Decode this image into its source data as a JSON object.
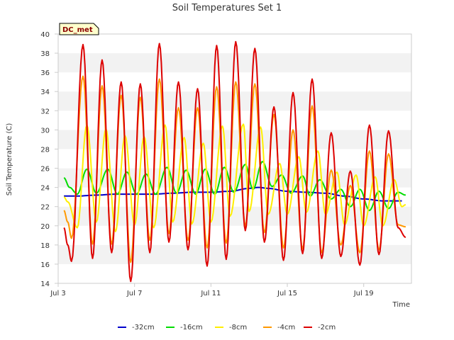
{
  "chart_data": {
    "type": "line",
    "title": "Soil Temperatures Set 1",
    "xlabel": "Time",
    "ylabel": "Soil Temperature (C)",
    "badge": "DC_met",
    "x_ticks": [
      "Jul 3",
      "Jul 7",
      "Jul 11",
      "Jul 15",
      "Jul 19"
    ],
    "y_ticks": [
      14,
      16,
      18,
      20,
      22,
      24,
      26,
      28,
      30,
      32,
      34,
      36,
      38,
      40
    ],
    "xlim": [
      3.0,
      21.5
    ],
    "ylim": [
      14,
      40
    ],
    "grid": "horizontal bands",
    "legend_position": "bottom",
    "series": [
      {
        "name": "-32cm",
        "color": "#0000cc",
        "x": [
          3.3,
          4.0,
          5.0,
          6.0,
          7.0,
          8.0,
          9.0,
          10.0,
          11.0,
          12.0,
          13.0,
          13.5,
          14.0,
          15.0,
          16.0,
          17.0,
          18.0,
          19.0,
          20.0,
          21.0
        ],
        "values": [
          23.1,
          23.1,
          23.2,
          23.3,
          23.3,
          23.3,
          23.4,
          23.5,
          23.5,
          23.6,
          23.9,
          24.0,
          23.9,
          23.6,
          23.5,
          23.4,
          23.1,
          22.8,
          22.6,
          22.6
        ]
      },
      {
        "name": "-16cm",
        "color": "#00dd00",
        "x": [
          3.3,
          3.6,
          4.0,
          4.5,
          5.0,
          5.6,
          6.1,
          6.6,
          7.1,
          7.6,
          8.1,
          8.7,
          9.2,
          9.7,
          10.2,
          10.7,
          11.2,
          11.7,
          12.2,
          12.8,
          13.2,
          13.7,
          14.2,
          14.7,
          15.2,
          15.8,
          16.2,
          16.7,
          17.3,
          17.8,
          18.3,
          18.8,
          19.3,
          19.8,
          20.3,
          20.8,
          21.2
        ],
        "values": [
          25.0,
          24.0,
          23.3,
          25.9,
          23.4,
          25.9,
          23.3,
          25.6,
          23.3,
          25.4,
          23.3,
          26.1,
          23.4,
          25.8,
          23.3,
          25.9,
          23.3,
          26.1,
          23.5,
          26.4,
          23.8,
          26.7,
          24.1,
          25.3,
          23.4,
          25.2,
          23.1,
          24.8,
          22.8,
          23.8,
          22.0,
          23.8,
          21.6,
          23.6,
          21.8,
          23.5,
          23.2
        ]
      },
      {
        "name": "-8cm",
        "color": "#ffee00",
        "x": [
          3.3,
          3.5,
          4.0,
          4.5,
          5.0,
          5.5,
          6.0,
          6.5,
          7.0,
          7.5,
          8.0,
          8.6,
          9.0,
          9.6,
          10.0,
          10.6,
          11.0,
          11.6,
          12.0,
          12.7,
          13.0,
          13.6,
          14.0,
          14.6,
          15.0,
          15.6,
          16.0,
          16.6,
          17.0,
          17.6,
          18.0,
          18.6,
          19.0,
          19.6,
          20.0,
          20.6,
          21.0,
          21.2
        ],
        "values": [
          23.0,
          22.5,
          19.8,
          30.5,
          20.4,
          30.1,
          19.4,
          29.4,
          20.1,
          29.3,
          19.8,
          30.5,
          20.4,
          29.2,
          20.2,
          28.6,
          20.4,
          30.4,
          21.0,
          30.6,
          21.5,
          30.3,
          21.2,
          26.5,
          21.2,
          27.2,
          21.4,
          27.8,
          21.2,
          25.6,
          20.1,
          25.3,
          20.0,
          25.1,
          20.0,
          24.8,
          22.0,
          22.2
        ]
      },
      {
        "name": "-4cm",
        "color": "#ff9900",
        "x": [
          3.3,
          3.5,
          3.7,
          4.3,
          4.8,
          5.3,
          5.8,
          6.3,
          6.8,
          7.3,
          7.8,
          8.3,
          8.8,
          9.3,
          9.8,
          10.3,
          10.8,
          11.3,
          11.8,
          12.3,
          12.8,
          13.3,
          13.8,
          14.3,
          14.8,
          15.3,
          15.8,
          16.3,
          16.8,
          17.3,
          17.8,
          18.3,
          18.8,
          19.3,
          19.8,
          20.3,
          20.8,
          21.2
        ],
        "values": [
          21.6,
          20.4,
          18.7,
          35.6,
          18.1,
          34.6,
          18.1,
          33.6,
          16.2,
          33.4,
          18.5,
          35.3,
          19.2,
          32.3,
          18.5,
          32.3,
          17.7,
          34.5,
          18.2,
          35.0,
          20.0,
          34.8,
          19.3,
          31.6,
          17.7,
          30.0,
          17.6,
          32.5,
          17.2,
          25.8,
          18.0,
          24.2,
          17.2,
          27.8,
          17.5,
          27.5,
          20.1,
          19.9
        ]
      },
      {
        "name": "-2cm",
        "color": "#dd0000",
        "x": [
          3.3,
          3.5,
          3.7,
          4.3,
          4.8,
          5.3,
          5.8,
          6.3,
          6.8,
          7.3,
          7.8,
          8.3,
          8.8,
          9.3,
          9.8,
          10.3,
          10.8,
          11.3,
          11.8,
          12.3,
          12.8,
          13.3,
          13.8,
          14.3,
          14.8,
          15.3,
          15.8,
          16.3,
          16.8,
          17.3,
          17.8,
          18.3,
          18.8,
          19.3,
          19.8,
          20.3,
          20.8,
          21.2
        ],
        "values": [
          19.8,
          18.0,
          16.3,
          38.9,
          16.6,
          37.3,
          17.2,
          35.0,
          14.2,
          34.8,
          17.2,
          39.0,
          18.3,
          35.0,
          17.5,
          34.3,
          15.8,
          38.8,
          16.5,
          39.2,
          19.5,
          38.5,
          18.3,
          32.4,
          16.4,
          33.9,
          17.1,
          35.3,
          16.6,
          29.7,
          16.8,
          25.7,
          15.9,
          30.5,
          17.0,
          29.9,
          19.8,
          18.8
        ]
      }
    ]
  }
}
